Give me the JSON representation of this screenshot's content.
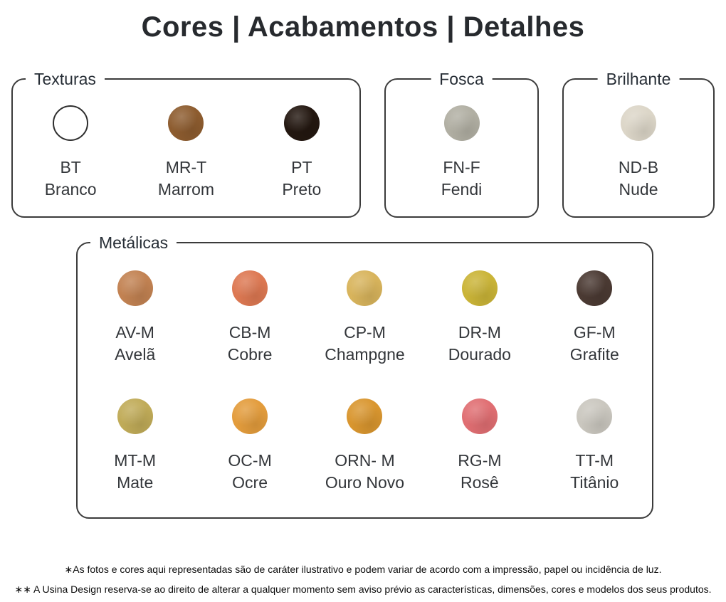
{
  "page": {
    "title": "Cores | Acabamentos | Detalhes"
  },
  "sections": {
    "texturas": {
      "label": "Texturas",
      "swatches": [
        {
          "code": "BT",
          "name": "Branco",
          "color": "#ffffff"
        },
        {
          "code": "MR-T",
          "name": "Marrom",
          "color": "#8d5c2f"
        },
        {
          "code": "PT",
          "name": "Preto",
          "color": "#231710"
        }
      ]
    },
    "fosca": {
      "label": "Fosca",
      "swatches": [
        {
          "code": "FN-F",
          "name": "Fendi",
          "color": "#b1afa3"
        }
      ]
    },
    "brilhante": {
      "label": "Brilhante",
      "swatches": [
        {
          "code": "ND-B",
          "name": "Nude",
          "color": "#dcd6c8"
        }
      ]
    },
    "metalicas": {
      "label": "Metálicas",
      "rows": [
        [
          {
            "code": "AV-M",
            "name": "Avelã",
            "color": "#c28252"
          },
          {
            "code": "CB-M",
            "name": "Cobre",
            "color": "#dd7852"
          },
          {
            "code": "CP-M",
            "name": "Champgne",
            "color": "#d8b45c"
          },
          {
            "code": "DR-M",
            "name": "Dourado",
            "color": "#cab437"
          },
          {
            "code": "GF-M",
            "name": "Grafite",
            "color": "#4b3a33"
          }
        ],
        [
          {
            "code": "MT-M",
            "name": "Mate",
            "color": "#c0ab58"
          },
          {
            "code": "OC-M",
            "name": "Ocre",
            "color": "#e39c3c"
          },
          {
            "code": "ORN- M",
            "name": "Ouro Novo",
            "color": "#d9962f"
          },
          {
            "code": "RG-M",
            "name": "Rosê",
            "color": "#e06e72"
          },
          {
            "code": "TT-M",
            "name": "Titânio",
            "color": "#cac7bf"
          }
        ]
      ]
    }
  },
  "footnotes": [
    "∗As fotos e cores aqui representadas são de caráter ilustrativo e podem variar de acordo com a impressão, papel ou incidência de luz.",
    "∗∗ A Usina Design reserva-se ao direito de alterar a qualquer momento sem aviso prévio as características, dimensões, cores e modelos dos seus produtos."
  ],
  "colors": {
    "box_border": "#3b3b3b",
    "heading_text": "#272e36",
    "swatch_text": "#33363a",
    "footnote_text": "#0b0b0b"
  }
}
